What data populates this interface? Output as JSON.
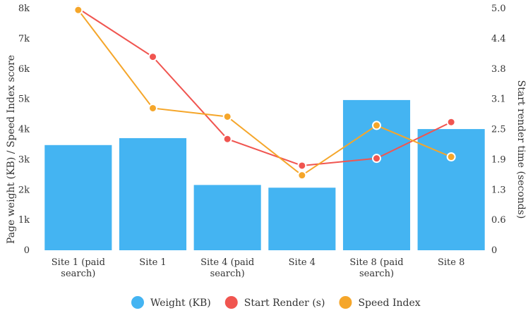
{
  "chart_data": {
    "type": "bar",
    "categories": [
      [
        "Site 1 (paid",
        "search)"
      ],
      [
        "Site 1"
      ],
      [
        "Site 4 (paid",
        "search)"
      ],
      [
        "Site 4"
      ],
      [
        "Site 8 (paid",
        "search)"
      ],
      [
        "Site 8"
      ]
    ],
    "series": [
      {
        "name": "Weight (KB)",
        "type": "bar",
        "axis": "left",
        "color": "#44b4f2",
        "values": [
          3480,
          3710,
          2160,
          2070,
          4970,
          4010
        ]
      },
      {
        "name": "Start Render (s)",
        "type": "line",
        "axis": "right",
        "color": "#f05550",
        "values": [
          5.0,
          4.0,
          2.3,
          1.75,
          1.9,
          2.65
        ]
      },
      {
        "name": "Speed Index",
        "type": "line",
        "axis": "left",
        "color": "#f5a62a",
        "values": [
          7950,
          4700,
          4420,
          2480,
          4130,
          3090
        ]
      }
    ],
    "ylabel": "Page weight (KB) / Speed Index score",
    "y2label": "Start render time (seconds)",
    "ylim": [
      0,
      8000
    ],
    "y2lim": [
      0,
      5.0
    ],
    "yticks": [
      "0",
      "1k",
      "2k",
      "3k",
      "4k",
      "5k",
      "6k",
      "7k",
      "8k"
    ],
    "yticks_values": [
      0,
      1000,
      2000,
      3000,
      4000,
      5000,
      6000,
      7000,
      8000
    ],
    "y2ticks": [
      "0",
      "0.6",
      "1.3",
      "1.9",
      "2.5",
      "3.1",
      "3.8",
      "4.4",
      "5.0"
    ],
    "grid": false,
    "legend_position": "bottom-center"
  }
}
